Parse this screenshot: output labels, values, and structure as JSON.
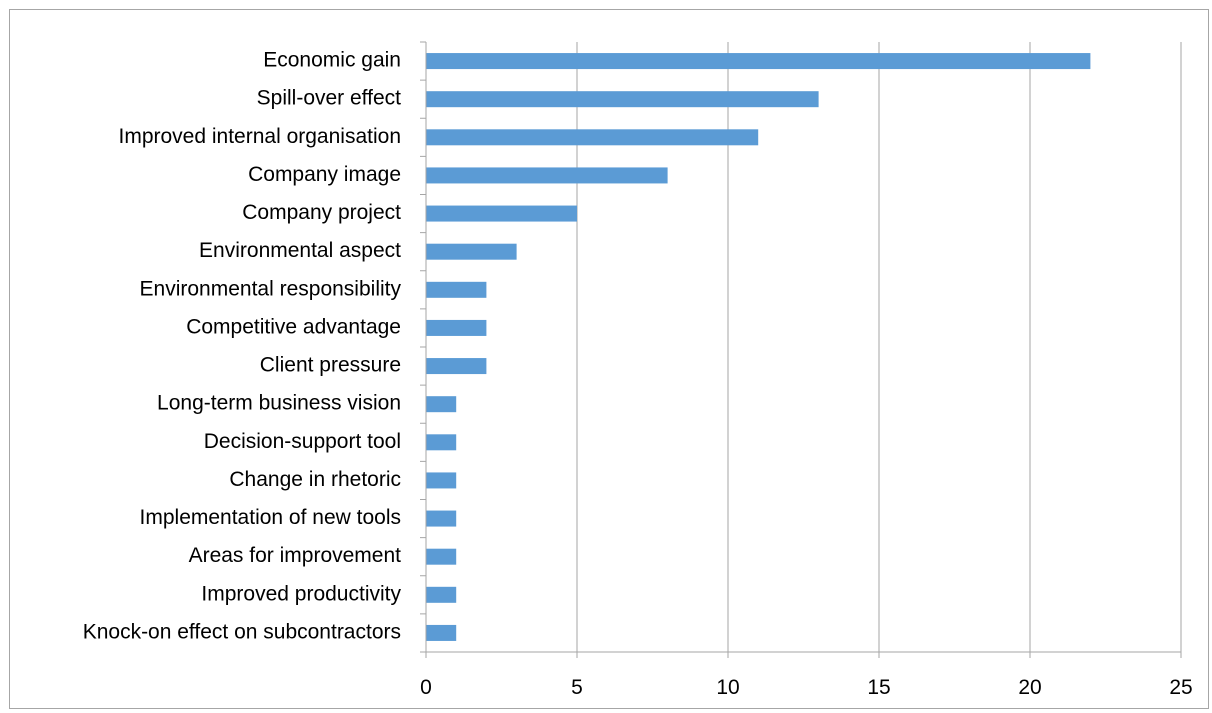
{
  "chart_data": {
    "type": "bar",
    "orientation": "horizontal",
    "categories": [
      "Economic gain",
      "Spill-over effect",
      "Improved internal organisation",
      "Company image",
      "Company project",
      "Environmental aspect",
      "Environmental responsibility",
      "Competitive advantage",
      "Client pressure",
      "Long-term business vision",
      "Decision-support tool",
      "Change in rhetoric",
      "Implementation of new tools",
      "Areas for improvement",
      "Improved productivity",
      "Knock-on effect on subcontractors"
    ],
    "values": [
      22,
      13,
      11,
      8,
      5,
      3,
      2,
      2,
      2,
      1,
      1,
      1,
      1,
      1,
      1,
      1
    ],
    "xlim": [
      0,
      25
    ],
    "xticks": [
      0,
      5,
      10,
      15,
      20,
      25
    ],
    "xtick_labels": [
      "0",
      "5",
      "10",
      "15",
      "20",
      "25"
    ],
    "title": "",
    "xlabel": "",
    "ylabel": "",
    "grid": "vertical",
    "legend": "none",
    "colors": {
      "bar": "#5b9bd5",
      "grid": "#a6a6a6",
      "axis": "#a6a6a6",
      "border": "#a6a6a6",
      "text": "#000000"
    }
  }
}
